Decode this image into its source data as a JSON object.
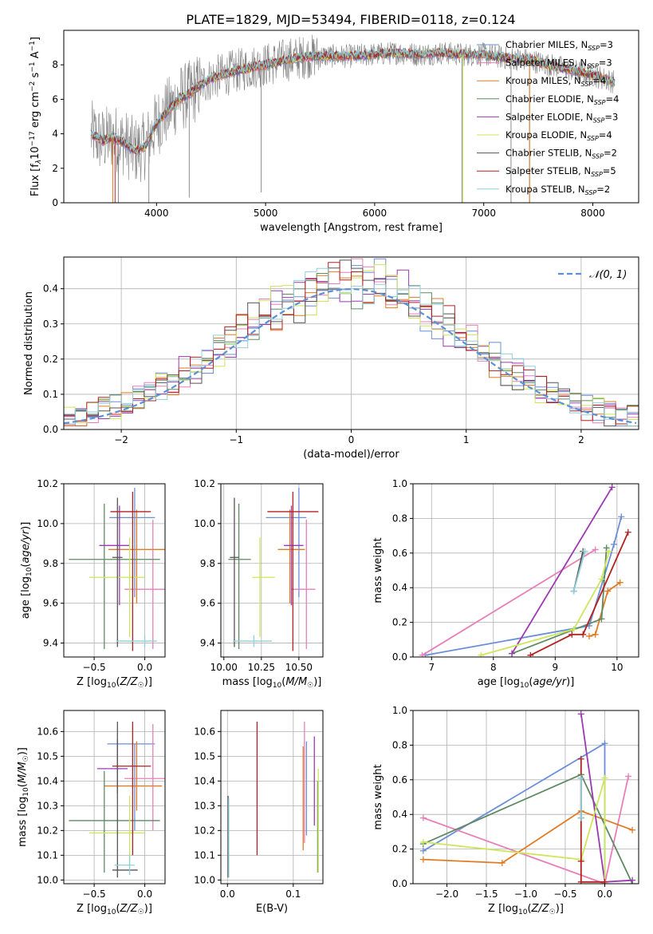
{
  "figure_title": "PLATE=1829, MJD=53494, FIBERID=0118, z=0.124",
  "colors": {
    "Chabrier MILES": "#6a8fd8",
    "Salpeter MILES": "#e87fb8",
    "Kroupa MILES": "#e07b22",
    "Chabrier ELODIE": "#5e8a63",
    "Salpeter ELODIE": "#9b3ab0",
    "Kroupa ELODIE": "#cde65a",
    "Chabrier STELIB": "#555555",
    "Salpeter STELIB": "#b22222",
    "Kroupa STELIB": "#8fd0d8",
    "data": "#808080",
    "gaussian": "#5b8fd8",
    "grid": "#b0b0b0"
  },
  "chart_data": [
    {
      "id": "spectrum",
      "type": "line",
      "xlabel": "wavelength [Angstrom, rest frame]",
      "ylabel": "Flux [f_λ 10^-17 erg cm^-2 s^-1 A^-1]",
      "xlim": [
        3150,
        8420
      ],
      "ylim": [
        0,
        10
      ],
      "xticks": [
        4000,
        5000,
        6000,
        7000,
        8000
      ],
      "yticks": [
        0,
        2,
        4,
        6,
        8
      ],
      "legend_placement": "right",
      "legend": [
        {
          "name": "Chabrier MILES",
          "sub": "SSP",
          "n": "3"
        },
        {
          "name": "Salpeter MILES",
          "sub": "SSP",
          "n": "3"
        },
        {
          "name": "Kroupa MILES",
          "sub": "SSP",
          "n": "4"
        },
        {
          "name": "Chabrier ELODIE",
          "sub": "SSP",
          "n": "4"
        },
        {
          "name": "Salpeter ELODIE",
          "sub": "SSP",
          "n": "3"
        },
        {
          "name": "Kroupa ELODIE",
          "sub": "SSP",
          "n": "4"
        },
        {
          "name": "Chabrier STELIB",
          "sub": "SSP",
          "n": "2"
        },
        {
          "name": "Salpeter STELIB",
          "sub": "SSP",
          "n": "5"
        },
        {
          "name": "Kroupa STELIB",
          "sub": "SSP",
          "n": "2"
        }
      ],
      "model_curve": {
        "x": [
          3400,
          3500,
          3600,
          3700,
          3800,
          3900,
          4000,
          4100,
          4200,
          4300,
          4400,
          4500,
          4700,
          4900,
          5000,
          5200,
          5400,
          5600,
          5800,
          6000,
          6200,
          6400,
          6600,
          6800,
          7000,
          7200,
          7400,
          7600,
          7800,
          8000,
          8200
        ],
        "y": [
          4.0,
          3.6,
          3.8,
          3.5,
          3.0,
          3.3,
          4.6,
          5.3,
          6.0,
          6.3,
          6.8,
          7.2,
          7.6,
          7.9,
          8.0,
          8.3,
          8.5,
          8.5,
          8.5,
          8.6,
          8.7,
          8.6,
          8.7,
          8.6,
          8.6,
          8.4,
          8.3,
          8.0,
          7.7,
          7.4,
          7.0
        ]
      }
    },
    {
      "id": "residual-histogram",
      "type": "histogram",
      "xlabel": "(data-model)/error",
      "ylabel": "Normed distribution",
      "xlim": [
        -2.5,
        2.5
      ],
      "ylim": [
        0,
        0.49
      ],
      "xticks": [
        -2,
        -1,
        0,
        1,
        2
      ],
      "yticks": [
        0.0,
        0.1,
        0.2,
        0.3,
        0.4
      ],
      "legend_placement": "top-right",
      "gaussian_label": "𝒩(0, 1)"
    },
    {
      "id": "age-vs-Z",
      "type": "errorbar",
      "xlabel": "Z [log10(Z/Z☉)]",
      "ylabel": "age [log10(age/yr)]",
      "xlim": [
        -0.8,
        0.2
      ],
      "ylim": [
        9.33,
        10.2
      ],
      "xticks": [
        -0.5,
        0.0
      ],
      "yticks": [
        9.4,
        9.6,
        9.8,
        10.0,
        10.2
      ],
      "points": [
        {
          "model": "Chabrier MILES",
          "x": -0.1,
          "xerr": [
            0.25,
            0.2
          ],
          "y": 10.03,
          "yerr": [
            0.4,
            0.15
          ]
        },
        {
          "model": "Salpeter MILES",
          "x": 0.08,
          "xerr": [
            0.28,
            0.12
          ],
          "y": 9.67,
          "yerr": [
            0.3,
            0.35
          ]
        },
        {
          "model": "Kroupa MILES",
          "x": -0.08,
          "xerr": [
            0.28,
            0.3
          ],
          "y": 9.87,
          "yerr": [
            0.27,
            0.2
          ]
        },
        {
          "model": "Chabrier ELODIE",
          "x": -0.4,
          "xerr": [
            0.35,
            0.55
          ],
          "y": 9.82,
          "yerr": [
            0.45,
            0.28
          ]
        },
        {
          "model": "Salpeter ELODIE",
          "x": -0.25,
          "xerr": [
            0.2,
            0.1
          ],
          "y": 9.89,
          "yerr": [
            0.3,
            0.2
          ]
        },
        {
          "model": "Kroupa ELODIE",
          "x": -0.15,
          "xerr": [
            0.4,
            0.15
          ],
          "y": 9.73,
          "yerr": [
            0.3,
            0.2
          ]
        },
        {
          "model": "Chabrier STELIB",
          "x": -0.27,
          "xerr": [
            0.05,
            0.05
          ],
          "y": 9.83,
          "yerr": [
            0.45,
            0.3
          ]
        },
        {
          "model": "Salpeter STELIB",
          "x": -0.12,
          "xerr": [
            0.22,
            0.18
          ],
          "y": 10.06,
          "yerr": [
            0.7,
            0.1
          ]
        },
        {
          "model": "Kroupa STELIB",
          "x": 0.0,
          "xerr": [
            0.28,
            0.12
          ],
          "y": 9.41,
          "yerr": [
            0.03,
            0.03
          ]
        }
      ]
    },
    {
      "id": "age-vs-mass",
      "type": "errorbar",
      "xlabel": "mass [log10(M/M☉)]",
      "ylabel": "",
      "xlim": [
        9.98,
        10.66
      ],
      "ylim": [
        9.33,
        10.2
      ],
      "xticks": [
        10.0,
        10.25,
        10.5
      ],
      "yticks": [
        9.4,
        9.6,
        9.8,
        10.0,
        10.2
      ],
      "points": [
        {
          "model": "Chabrier MILES",
          "x": 10.5,
          "xerr": [
            0.22,
            0.05
          ],
          "y": 10.03,
          "yerr": [
            0.4,
            0.15
          ]
        },
        {
          "model": "Salpeter MILES",
          "x": 10.55,
          "xerr": [
            0.1,
            0.06
          ],
          "y": 9.67,
          "yerr": [
            0.3,
            0.35
          ]
        },
        {
          "model": "Kroupa MILES",
          "x": 10.44,
          "xerr": [
            0.08,
            0.1
          ],
          "y": 9.87,
          "yerr": [
            0.27,
            0.2
          ]
        },
        {
          "model": "Chabrier ELODIE",
          "x": 10.1,
          "xerr": [
            0.07,
            0.08
          ],
          "y": 9.82,
          "yerr": [
            0.45,
            0.28
          ]
        },
        {
          "model": "Salpeter ELODIE",
          "x": 10.45,
          "xerr": [
            0.05,
            0.08
          ],
          "y": 9.89,
          "yerr": [
            0.3,
            0.2
          ]
        },
        {
          "model": "Kroupa ELODIE",
          "x": 10.24,
          "xerr": [
            0.05,
            0.1
          ],
          "y": 9.73,
          "yerr": [
            0.3,
            0.2
          ]
        },
        {
          "model": "Chabrier STELIB",
          "x": 10.07,
          "xerr": [
            0.03,
            0.03
          ],
          "y": 9.83,
          "yerr": [
            0.45,
            0.3
          ]
        },
        {
          "model": "Salpeter STELIB",
          "x": 10.46,
          "xerr": [
            0.17,
            0.17
          ],
          "y": 10.06,
          "yerr": [
            0.7,
            0.1
          ]
        },
        {
          "model": "Kroupa STELIB",
          "x": 10.2,
          "xerr": [
            0.14,
            0.12
          ],
          "y": 9.41,
          "yerr": [
            0.03,
            0.03
          ]
        }
      ]
    },
    {
      "id": "weight-vs-age",
      "type": "line",
      "xlabel": "age [log10(age/yr)]",
      "ylabel": "mass weight",
      "xlim": [
        6.7,
        10.35
      ],
      "ylim": [
        0,
        1
      ],
      "xticks": [
        7,
        8,
        9,
        10
      ],
      "yticks": [
        0.0,
        0.2,
        0.4,
        0.6,
        0.8,
        1.0
      ],
      "series": [
        {
          "model": "Chabrier MILES",
          "x": [
            6.9,
            9.55,
            9.95,
            10.07
          ],
          "y": [
            0.01,
            0.18,
            0.65,
            0.81
          ]
        },
        {
          "model": "Salpeter MILES",
          "x": [
            6.85,
            9.65
          ],
          "y": [
            0.01,
            0.62
          ]
        },
        {
          "model": "Kroupa MILES",
          "x": [
            9.55,
            9.65,
            9.85,
            10.05
          ],
          "y": [
            0.12,
            0.13,
            0.38,
            0.43
          ]
        },
        {
          "model": "Chabrier ELODIE",
          "x": [
            8.3,
            9.75,
            9.83
          ],
          "y": [
            0.02,
            0.22,
            0.63
          ]
        },
        {
          "model": "Salpeter ELODIE",
          "x": [
            8.3,
            9.92
          ],
          "y": [
            0.02,
            0.98
          ]
        },
        {
          "model": "Kroupa ELODIE",
          "x": [
            7.8,
            9.3,
            9.75,
            9.87
          ],
          "y": [
            0.01,
            0.16,
            0.45,
            0.61
          ]
        },
        {
          "model": "Chabrier STELIB",
          "x": [
            9.3,
            9.45
          ],
          "y": [
            0.38,
            0.61
          ]
        },
        {
          "model": "Salpeter STELIB",
          "x": [
            8.6,
            9.27,
            9.45,
            10.18
          ],
          "y": [
            0.01,
            0.13,
            0.13,
            0.72
          ]
        },
        {
          "model": "Kroupa STELIB",
          "x": [
            9.3,
            9.48
          ],
          "y": [
            0.38,
            0.61
          ]
        }
      ]
    },
    {
      "id": "mass-vs-Z",
      "type": "errorbar",
      "xlabel": "Z [log10(Z/Z☉)]",
      "ylabel": "mass [log10(M/M☉)]",
      "xlim": [
        -0.8,
        0.2
      ],
      "ylim": [
        9.985,
        10.685
      ],
      "xticks": [
        -0.5,
        0.0
      ],
      "yticks": [
        10.0,
        10.1,
        10.2,
        10.3,
        10.4,
        10.5,
        10.6
      ],
      "points": [
        {
          "model": "Chabrier MILES",
          "x": -0.1,
          "xerr": [
            0.27,
            0.2
          ],
          "y": 10.55,
          "yerr": [
            0.35,
            0.0
          ]
        },
        {
          "model": "Salpeter MILES",
          "x": 0.08,
          "xerr": [
            0.28,
            0.12
          ],
          "y": 10.41,
          "yerr": [
            0.21,
            0.22
          ]
        },
        {
          "model": "Kroupa MILES",
          "x": -0.08,
          "xerr": [
            0.32,
            0.25
          ],
          "y": 10.38,
          "yerr": [
            0.1,
            0.18
          ]
        },
        {
          "model": "Chabrier ELODIE",
          "x": -0.4,
          "xerr": [
            0.35,
            0.55
          ],
          "y": 10.24,
          "yerr": [
            0.21,
            0.2
          ]
        },
        {
          "model": "Salpeter ELODIE",
          "x": -0.27,
          "xerr": [
            0.2,
            0.1
          ],
          "y": 10.45,
          "yerr": [
            0.1,
            0.12
          ]
        },
        {
          "model": "Kroupa ELODIE",
          "x": -0.15,
          "xerr": [
            0.4,
            0.15
          ],
          "y": 10.19,
          "yerr": [
            0.13,
            0.15
          ]
        },
        {
          "model": "Chabrier STELIB",
          "x": -0.27,
          "xerr": [
            0.05,
            0.2
          ],
          "y": 10.04,
          "yerr": [
            0.03,
            0.6
          ]
        },
        {
          "model": "Salpeter STELIB",
          "x": -0.12,
          "xerr": [
            0.2,
            0.18
          ],
          "y": 10.46,
          "yerr": [
            0.36,
            0.18
          ]
        },
        {
          "model": "Kroupa STELIB",
          "x": -0.15,
          "xerr": [
            0.15,
            0.05
          ],
          "y": 10.06,
          "yerr": [
            0.04,
            0.04
          ]
        }
      ]
    },
    {
      "id": "mass-vs-EBV",
      "type": "errorbar",
      "xlabel": "E(B-V)",
      "ylabel": "",
      "xlim": [
        -0.01,
        0.145
      ],
      "ylim": [
        9.985,
        10.685
      ],
      "xticks": [
        0.0,
        0.1
      ],
      "yticks": [
        10.0,
        10.1,
        10.2,
        10.3,
        10.4,
        10.5,
        10.6
      ],
      "points": [
        {
          "model": "Chabrier MILES",
          "x": 0.12,
          "y": 10.38,
          "yerr": [
            0.2,
            0.18
          ]
        },
        {
          "model": "Salpeter MILES",
          "x": 0.117,
          "y": 10.45,
          "yerr": [
            0.3,
            0.19
          ]
        },
        {
          "model": "Kroupa MILES",
          "x": 0.115,
          "y": 10.38,
          "yerr": [
            0.26,
            0.16
          ]
        },
        {
          "model": "Chabrier ELODIE",
          "x": 0.137,
          "y": 10.15,
          "yerr": [
            0.12,
            0.25
          ]
        },
        {
          "model": "Salpeter ELODIE",
          "x": 0.132,
          "y": 10.4,
          "yerr": [
            0.18,
            0.18
          ]
        },
        {
          "model": "Kroupa ELODIE",
          "x": 0.138,
          "y": 10.2,
          "yerr": [
            0.17,
            0.25
          ]
        },
        {
          "model": "Chabrier STELIB",
          "x": 0.001,
          "y": 10.04,
          "yerr": [
            0.03,
            0.3
          ]
        },
        {
          "model": "Salpeter STELIB",
          "x": 0.045,
          "y": 10.37,
          "yerr": [
            0.27,
            0.27
          ]
        },
        {
          "model": "Kroupa STELIB",
          "x": 0.002,
          "y": 10.17,
          "yerr": [
            0.16,
            0.16
          ]
        }
      ]
    },
    {
      "id": "weight-vs-Z",
      "type": "line",
      "xlabel": "Z [log10(Z/Z☉)]",
      "ylabel": "mass weight",
      "xlim": [
        -2.43,
        0.43
      ],
      "ylim": [
        0,
        1
      ],
      "xticks": [
        -2.0,
        -1.5,
        -1.0,
        -0.5,
        0.0
      ],
      "yticks": [
        0.0,
        0.2,
        0.4,
        0.6,
        0.8,
        1.0
      ],
      "series": [
        {
          "model": "Chabrier MILES",
          "x": [
            -2.3,
            0.0,
            0.0
          ],
          "y": [
            0.19,
            0.81,
            0.0
          ]
        },
        {
          "model": "Salpeter MILES",
          "x": [
            -2.3,
            0.0,
            0.3
          ],
          "y": [
            0.38,
            0.0,
            0.62
          ]
        },
        {
          "model": "Kroupa MILES",
          "x": [
            -2.3,
            -1.3,
            -0.3,
            0.35
          ],
          "y": [
            0.14,
            0.12,
            0.42,
            0.31
          ]
        },
        {
          "model": "Chabrier ELODIE",
          "x": [
            -2.3,
            -0.3,
            0.35
          ],
          "y": [
            0.23,
            0.63,
            0.0
          ]
        },
        {
          "model": "Salpeter ELODIE",
          "x": [
            -0.3,
            0.0,
            0.35
          ],
          "y": [
            0.98,
            0.01,
            0.02
          ]
        },
        {
          "model": "Kroupa ELODIE",
          "x": [
            -2.3,
            -0.3,
            0.0,
            0.0
          ],
          "y": [
            0.24,
            0.14,
            0.61,
            0.0
          ]
        },
        {
          "model": "Chabrier STELIB",
          "x": [
            -0.3,
            -0.3
          ],
          "y": [
            0.38,
            0.61
          ]
        },
        {
          "model": "Salpeter STELIB",
          "x": [
            -0.3,
            -0.3,
            -0.3,
            0.0
          ],
          "y": [
            0.72,
            0.13,
            0.01,
            0.01
          ]
        },
        {
          "model": "Kroupa STELIB",
          "x": [
            -0.3,
            -0.3
          ],
          "y": [
            0.38,
            0.61
          ]
        }
      ]
    }
  ]
}
